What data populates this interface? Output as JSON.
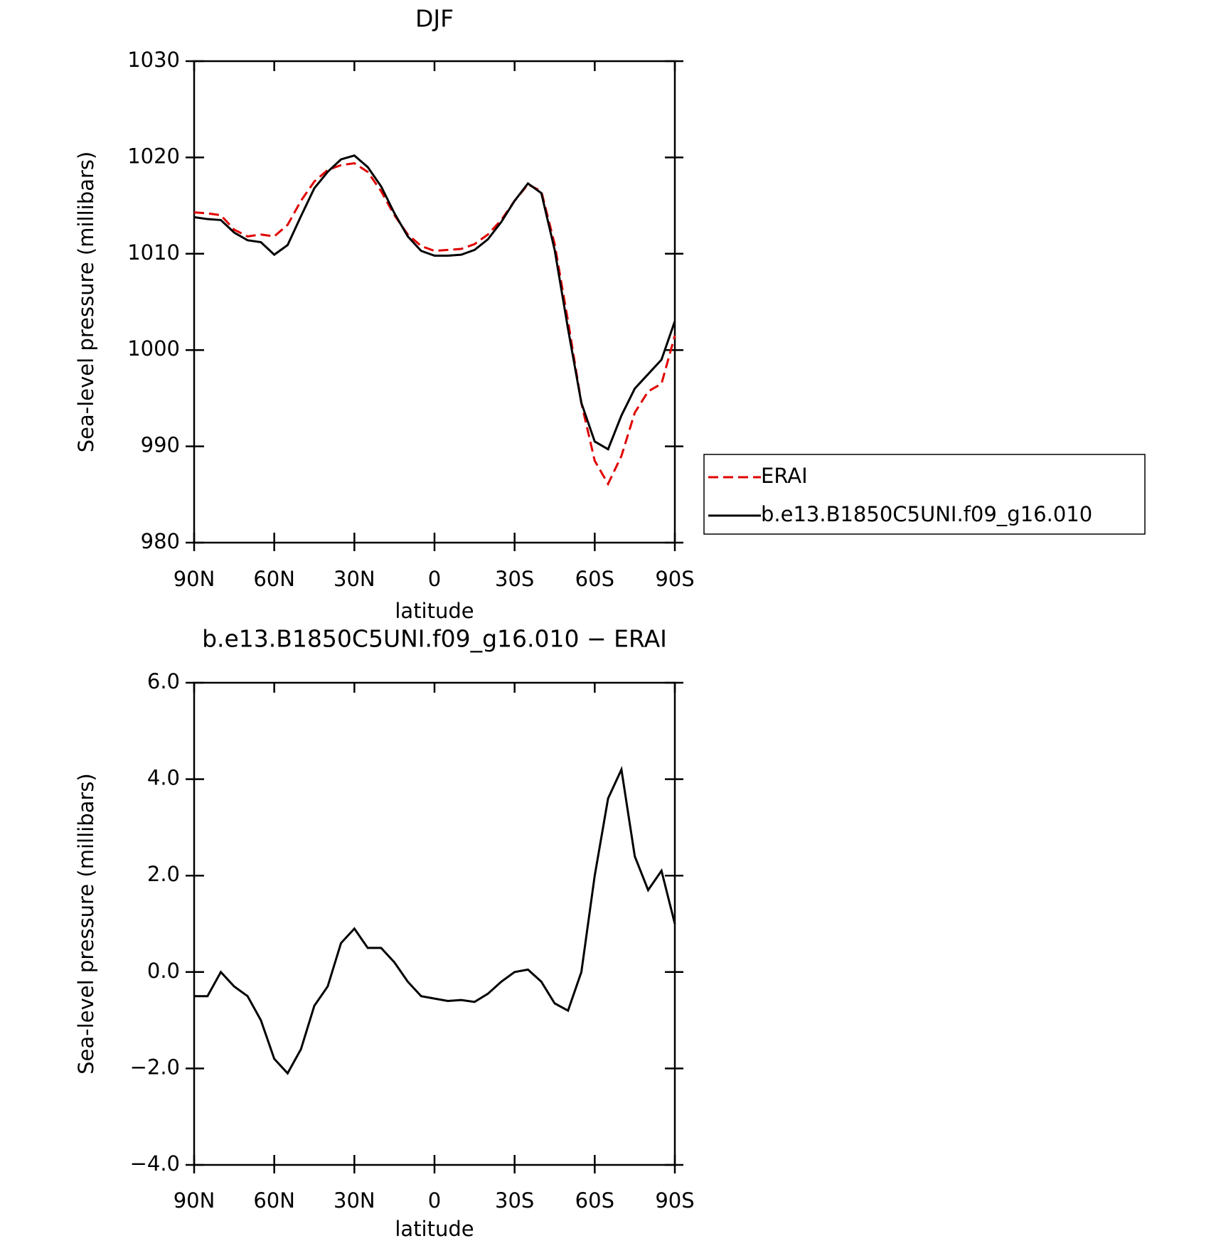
{
  "chart_data": [
    {
      "type": "line",
      "title": "DJF",
      "xlabel": "latitude",
      "ylabel": "Sea-level pressure (millibars)",
      "x": [
        90,
        85,
        80,
        75,
        70,
        65,
        60,
        55,
        50,
        45,
        40,
        35,
        30,
        25,
        20,
        15,
        10,
        5,
        0,
        -5,
        -10,
        -15,
        -20,
        -25,
        -30,
        -35,
        -40,
        -45,
        -50,
        -55,
        -60,
        -65,
        -70,
        -75,
        -80,
        -85,
        -90
      ],
      "series": [
        {
          "name": "ERAI",
          "color": "#e00000",
          "dash": true,
          "values": [
            1014.3,
            1014.2,
            1014.0,
            1012.5,
            1011.8,
            1012.0,
            1011.8,
            1013.0,
            1015.5,
            1017.5,
            1018.7,
            1019.2,
            1019.4,
            1018.5,
            1016.5,
            1014.0,
            1012.0,
            1010.8,
            1010.3,
            1010.4,
            1010.5,
            1011.0,
            1012.0,
            1013.5,
            1015.5,
            1017.2,
            1016.5,
            1011.0,
            1003.0,
            994.5,
            988.5,
            986.1,
            989.0,
            993.5,
            995.7,
            996.5,
            1001.5
          ]
        },
        {
          "name": "b.e13.B1850C5UNI.f09_g16.010",
          "color": "#000000",
          "dash": false,
          "values": [
            1013.8,
            1013.6,
            1013.5,
            1012.2,
            1011.4,
            1011.2,
            1009.9,
            1010.9,
            1013.9,
            1016.8,
            1018.5,
            1019.8,
            1020.2,
            1019.0,
            1017.0,
            1014.2,
            1011.8,
            1010.3,
            1009.8,
            1009.8,
            1009.9,
            1010.4,
            1011.5,
            1013.3,
            1015.5,
            1017.3,
            1016.3,
            1010.4,
            1002.2,
            994.5,
            990.5,
            989.7,
            993.2,
            996.0,
            997.5,
            999.0,
            1003.0
          ]
        }
      ],
      "xlim": [
        90,
        -90
      ],
      "xticks": [
        {
          "value": 90,
          "label": "90N"
        },
        {
          "value": 60,
          "label": "60N"
        },
        {
          "value": 30,
          "label": "30N"
        },
        0,
        {
          "value": -30,
          "label": "30S"
        },
        {
          "value": -60,
          "label": "60S"
        },
        {
          "value": -90,
          "label": "90S"
        }
      ],
      "ylim": [
        980,
        1030
      ],
      "yticks": [
        980,
        990,
        1000,
        1010,
        1020,
        1030
      ],
      "legend": "right"
    },
    {
      "type": "line",
      "title": "b.e13.B1850C5UNI.f09_g16.010 − ERAI",
      "xlabel": "latitude",
      "ylabel": "Sea-level pressure (millibars)",
      "x": [
        90,
        85,
        80,
        75,
        70,
        65,
        60,
        55,
        50,
        45,
        40,
        35,
        30,
        25,
        20,
        15,
        10,
        5,
        0,
        -5,
        -10,
        -15,
        -20,
        -25,
        -30,
        -35,
        -40,
        -45,
        -50,
        -55,
        -60,
        -65,
        -70,
        -75,
        -80,
        -85,
        -90
      ],
      "series": [
        {
          "color": "#000000",
          "dash": false,
          "values": [
            -0.5,
            -0.5,
            0.0,
            -0.3,
            -0.5,
            -1.0,
            -1.8,
            -2.1,
            -1.6,
            -0.7,
            -0.3,
            0.6,
            0.9,
            0.5,
            0.5,
            0.2,
            -0.2,
            -0.5,
            -0.55,
            -0.6,
            -0.58,
            -0.62,
            -0.45,
            -0.2,
            0.0,
            0.05,
            -0.2,
            -0.65,
            -0.8,
            0.0,
            2.0,
            3.6,
            4.2,
            2.4,
            1.7,
            2.1,
            1.0
          ]
        }
      ],
      "xlim": [
        90,
        -90
      ],
      "xticks": [
        {
          "value": 90,
          "label": "90N"
        },
        {
          "value": 60,
          "label": "60N"
        },
        {
          "value": 30,
          "label": "30N"
        },
        0,
        {
          "value": -30,
          "label": "30S"
        },
        {
          "value": -60,
          "label": "60S"
        },
        {
          "value": -90,
          "label": "90S"
        }
      ],
      "ylim": [
        -4,
        6
      ],
      "yticks": [
        {
          "value": -4,
          "label": "−4.0"
        },
        {
          "value": -2,
          "label": "−2.0"
        },
        {
          "value": 0,
          "label": "0.0"
        },
        {
          "value": 2,
          "label": "2.0"
        },
        {
          "value": 4,
          "label": "4.0"
        },
        {
          "value": 6,
          "label": "6.0"
        }
      ]
    }
  ]
}
